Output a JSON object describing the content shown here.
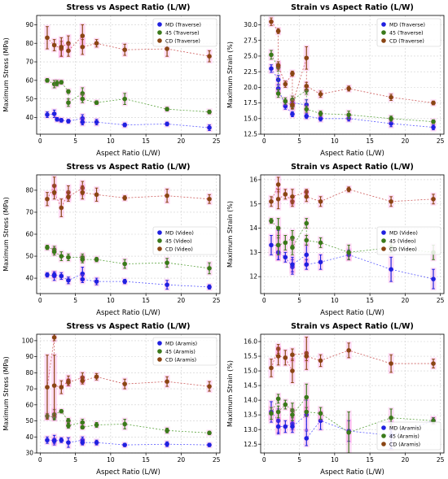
{
  "figure": {
    "panels": [
      {
        "title": "Stress vs Aspect Ratio (L/W)",
        "xlabel": "Aspect Ratio (L/W)",
        "ylabel": "Maximum Stress (MPa)",
        "legend_position": "upper right"
      },
      {
        "title": "Strain vs Aspect Ratio (L/W)",
        "xlabel": "Aspect Ratio (L/W)",
        "ylabel": "Maximum Strain (%)",
        "legend_position": "upper right"
      },
      {
        "title": "Stress vs Aspect Ratio (L/W)",
        "xlabel": "Aspect Ratio (L/W)",
        "ylabel": "Maximum Stress (MPa)",
        "legend_position": "center right"
      },
      {
        "title": "Strain vs Aspect Ratio (L/W)",
        "xlabel": "Aspect Ratio (L/W)",
        "ylabel": "Maximum Strain (%)",
        "legend_position": "center right"
      },
      {
        "title": "Stress vs Aspect Ratio (L/W)",
        "xlabel": "Aspect Ratio (L/W)",
        "ylabel": "Maximum Stress (MPa)",
        "legend_position": "upper right"
      },
      {
        "title": "Strain vs Aspect Ratio (L/W)",
        "xlabel": "Aspect Ratio (L/W)",
        "ylabel": "Maximum Strain (%)",
        "legend_position": "lower right"
      }
    ]
  },
  "colors": {
    "MD": "#2020e0",
    "45": "#3a7a1a",
    "CD": "#8a4513",
    "MD_line": "#4a4aff",
    "45_line": "#4a9a2a",
    "CD_line": "#c84a4a",
    "highlight": "#ff60d0",
    "grid": "#cfcfcf"
  },
  "chart_data": [
    {
      "type": "scatter",
      "title": "Stress vs Aspect Ratio (L/W)",
      "xlabel": "Aspect Ratio (L/W)",
      "ylabel": "Maximum Stress (MPa)",
      "xlim": [
        -0.5,
        25.5
      ],
      "ylim": [
        31,
        95
      ],
      "xticks": [
        0,
        5,
        10,
        15,
        20,
        25
      ],
      "yticks": [
        40,
        50,
        60,
        70,
        80,
        90
      ],
      "grid": true,
      "legend": "upper right",
      "series": [
        {
          "name": "MD (Traverse)",
          "key": "MD",
          "x": [
            1,
            2,
            2.4,
            3,
            4,
            6,
            6,
            8,
            12,
            18,
            24
          ],
          "y": [
            41.5,
            42,
            39,
            38.5,
            38,
            39.5,
            37.5,
            37.5,
            36,
            36.5,
            34.5
          ],
          "err": [
            1.5,
            2,
            1,
            1,
            1,
            2,
            1.5,
            1.5,
            1,
            1,
            1.5
          ]
        },
        {
          "name": "45 (Traverse)",
          "key": "45",
          "x": [
            1,
            2,
            2.4,
            3,
            4,
            4,
            6,
            6,
            8,
            12,
            18,
            24
          ],
          "y": [
            60,
            58,
            58.5,
            59,
            54,
            48,
            53,
            50,
            48,
            50,
            44.5,
            43
          ],
          "err": [
            1,
            2,
            1.5,
            1,
            1,
            2,
            3,
            2,
            1,
            3,
            1,
            1
          ]
        },
        {
          "name": "CD (Traverse)",
          "key": "CD",
          "x": [
            1,
            2,
            3,
            3,
            4,
            4,
            6,
            6,
            8,
            12,
            18,
            24
          ],
          "y": [
            83,
            79,
            77,
            78,
            80,
            76,
            84,
            78,
            80,
            76.5,
            77,
            73
          ],
          "err": [
            6,
            3,
            4,
            5,
            4,
            3,
            6,
            4,
            2,
            3,
            4,
            3
          ]
        }
      ]
    },
    {
      "type": "scatter",
      "title": "Strain vs Aspect Ratio (L/W)",
      "xlabel": "Aspect Ratio (L/W)",
      "ylabel": "Maximum Strain (%)",
      "xlim": [
        -0.5,
        25.5
      ],
      "ylim": [
        12.5,
        31.5
      ],
      "xticks": [
        0,
        5,
        10,
        15,
        20,
        25
      ],
      "yticks": [
        12.5,
        15.0,
        17.5,
        20.0,
        22.5,
        25.0,
        27.5,
        30.0
      ],
      "grid": true,
      "legend": "upper right",
      "series": [
        {
          "name": "MD (Traverse)",
          "key": "MD",
          "x": [
            1,
            2,
            2,
            3,
            4,
            4,
            6,
            6,
            8,
            12,
            18,
            24
          ],
          "y": [
            23,
            21.2,
            19.8,
            17,
            15.7,
            17.5,
            17.2,
            15.4,
            15,
            15,
            14.2,
            13.6
          ],
          "err": [
            0.6,
            0.7,
            0.5,
            0.5,
            0.4,
            0.6,
            0.8,
            0.4,
            0.4,
            0.4,
            0.5,
            0.4
          ]
        },
        {
          "name": "45 (Traverse)",
          "key": "45",
          "x": [
            1,
            2,
            2,
            3,
            4,
            4,
            6,
            6,
            8,
            12,
            18,
            24
          ],
          "y": [
            25.2,
            23.2,
            19,
            17.8,
            17,
            18,
            19.5,
            16.5,
            15.8,
            15.6,
            15,
            14.5
          ],
          "err": [
            0.7,
            0.6,
            0.6,
            0.5,
            0.5,
            0.6,
            0.6,
            0.5,
            0.4,
            0.6,
            0.4,
            0.3
          ]
        },
        {
          "name": "CD (Traverse)",
          "key": "CD",
          "x": [
            1,
            2,
            2,
            3,
            4,
            4,
            6,
            6,
            8,
            12,
            18,
            24
          ],
          "y": [
            30.5,
            29,
            23.5,
            20.5,
            22.2,
            17.2,
            24.7,
            20.2,
            18.9,
            19.8,
            18.4,
            17.5
          ],
          "err": [
            0.6,
            0.4,
            0.6,
            0.5,
            0.4,
            0.6,
            1.8,
            0.6,
            0.5,
            0.4,
            0.5,
            0.3
          ]
        }
      ]
    },
    {
      "type": "scatter",
      "title": "Stress vs Aspect Ratio (L/W)",
      "xlabel": "Aspect Ratio (L/W)",
      "ylabel": "Maximum Stress (MPa)",
      "xlim": [
        -0.5,
        25.5
      ],
      "ylim": [
        33,
        87
      ],
      "xticks": [
        0,
        5,
        10,
        15,
        20,
        25
      ],
      "yticks": [
        40,
        50,
        60,
        70,
        80
      ],
      "grid": true,
      "legend": "center right",
      "series": [
        {
          "name": "MD (Video)",
          "key": "MD",
          "x": [
            1,
            2,
            2,
            3,
            4,
            6,
            6,
            8,
            12,
            18,
            24
          ],
          "y": [
            41.5,
            41,
            41.5,
            41,
            39,
            42,
            39.5,
            38.5,
            38.5,
            37,
            36
          ],
          "err": [
            1,
            2,
            1,
            1.5,
            1.5,
            3,
            1.5,
            1.5,
            1,
            2,
            1
          ]
        },
        {
          "name": "45 (Video)",
          "key": "45",
          "x": [
            1,
            2,
            2,
            3,
            4,
            6,
            6,
            8,
            12,
            18,
            24
          ],
          "y": [
            54,
            53,
            52,
            50,
            49.5,
            49.5,
            48.5,
            48.5,
            46.5,
            47,
            44.5
          ],
          "err": [
            1,
            1.5,
            1.5,
            2,
            1.5,
            1.5,
            1.5,
            1,
            2,
            2,
            2.5
          ]
        },
        {
          "name": "CD (Video)",
          "key": "CD",
          "x": [
            1,
            2,
            2,
            3,
            4,
            4,
            6,
            6,
            8,
            12,
            18,
            24
          ],
          "y": [
            76,
            82,
            79,
            72,
            79,
            77,
            81,
            79,
            78,
            76.5,
            77.5,
            76
          ],
          "err": [
            3,
            4,
            3,
            4,
            3,
            2,
            3,
            3,
            3,
            1,
            3,
            2
          ]
        }
      ]
    },
    {
      "type": "scatter",
      "title": "Strain vs Aspect Ratio (L/W)",
      "xlabel": "Aspect Ratio (L/W)",
      "ylabel": "Maximum Strain (%)",
      "xlim": [
        -0.5,
        25.5
      ],
      "ylim": [
        11.3,
        16.2
      ],
      "xticks": [
        0,
        5,
        10,
        15,
        20,
        25
      ],
      "yticks": [
        12,
        13,
        14,
        15,
        16
      ],
      "grid": true,
      "legend": "center right",
      "series": [
        {
          "name": "MD (Video)",
          "key": "MD",
          "x": [
            1,
            2,
            2,
            3,
            4,
            4,
            6,
            6,
            8,
            12,
            18,
            24
          ],
          "y": [
            13.3,
            13.3,
            13,
            12.8,
            12.4,
            12.5,
            12.9,
            12.5,
            12.6,
            12.9,
            12.3,
            11.9
          ],
          "err": [
            0.4,
            0.6,
            0.3,
            0.2,
            0.3,
            0.3,
            0.4,
            0.2,
            0.3,
            0.2,
            0.5,
            0.4
          ]
        },
        {
          "name": "45 (Video)",
          "key": "45",
          "x": [
            1,
            2,
            2,
            3,
            4,
            4,
            6,
            6,
            8,
            12,
            18,
            24
          ],
          "y": [
            14.3,
            14,
            13.3,
            13.4,
            13.6,
            13.2,
            14.2,
            13.5,
            13.4,
            13,
            13.2,
            13
          ],
          "err": [
            0.1,
            0.4,
            0.4,
            0.3,
            0.3,
            0.3,
            0.2,
            0.2,
            0.2,
            0.3,
            0.2,
            0.3
          ]
        },
        {
          "name": "CD (Video)",
          "key": "CD",
          "x": [
            1,
            2,
            2,
            3,
            4,
            4,
            6,
            6,
            8,
            12,
            18,
            24
          ],
          "y": [
            15.1,
            15.8,
            15.2,
            15.4,
            15.1,
            15.3,
            15.5,
            15.3,
            15.1,
            15.6,
            15.1,
            15.2
          ],
          "err": [
            0.2,
            0.3,
            0.4,
            0.2,
            0.2,
            0.3,
            0.1,
            0.2,
            0.2,
            0.1,
            0.2,
            0.2
          ]
        }
      ]
    },
    {
      "type": "scatter",
      "title": "Stress vs Aspect Ratio (L/W)",
      "xlabel": "Aspect Ratio (L/W)",
      "ylabel": "Maximum Stress (MPa)",
      "xlim": [
        -0.5,
        25.5
      ],
      "ylim": [
        30,
        104
      ],
      "xticks": [
        0,
        5,
        10,
        15,
        20,
        25
      ],
      "yticks": [
        30,
        40,
        50,
        60,
        70,
        80,
        90,
        100
      ],
      "grid": true,
      "legend": "upper right",
      "series": [
        {
          "name": "MD (Aramis)",
          "key": "MD",
          "x": [
            1,
            2,
            2,
            3,
            4,
            6,
            6,
            8,
            12,
            18,
            24
          ],
          "y": [
            38,
            38,
            37.5,
            38,
            36.5,
            38,
            36.5,
            36.5,
            35,
            35.5,
            35
          ],
          "err": [
            2,
            3,
            1.5,
            1.5,
            3,
            2,
            1.5,
            1.5,
            1,
            1.5,
            1
          ]
        },
        {
          "name": "45 (Aramis)",
          "key": "45",
          "x": [
            1,
            2,
            2,
            3,
            4,
            4,
            6,
            6,
            8,
            12,
            18,
            24
          ],
          "y": [
            53,
            52.5,
            54,
            56,
            50,
            47,
            49,
            46,
            47.5,
            48,
            44,
            42.5
          ],
          "err": [
            1.5,
            2,
            3,
            1,
            1.5,
            1.5,
            2,
            1,
            1.5,
            3,
            1.5,
            1
          ]
        },
        {
          "name": "CD (Aramis)",
          "key": "CD",
          "x": [
            1,
            2,
            2,
            3,
            4,
            4,
            6,
            6,
            8,
            12,
            18,
            24
          ],
          "y": [
            71,
            102,
            72,
            71,
            75,
            74,
            77,
            75,
            77.5,
            73,
            74.5,
            71.5
          ],
          "err": [
            20,
            2,
            19,
            4,
            3,
            2,
            3,
            2,
            2,
            3,
            3,
            3
          ]
        }
      ]
    },
    {
      "type": "scatter",
      "title": "Strain vs Aspect Ratio (L/W)",
      "xlabel": "Aspect Ratio (L/W)",
      "ylabel": "Maximum Strain (%)",
      "xlim": [
        -0.5,
        25.5
      ],
      "ylim": [
        12.2,
        16.25
      ],
      "xticks": [
        0,
        5,
        10,
        15,
        20,
        25
      ],
      "yticks": [
        12.5,
        13.0,
        13.5,
        14.0,
        14.5,
        15.0,
        15.5,
        16.0
      ],
      "grid": true,
      "legend": "lower right",
      "series": [
        {
          "name": "MD (Aramis)",
          "key": "MD",
          "x": [
            1,
            2,
            2,
            3,
            4,
            4,
            6,
            6,
            8,
            12,
            18,
            24
          ],
          "y": [
            13.6,
            13.3,
            13.1,
            13.1,
            13.2,
            13.1,
            13.5,
            12.7,
            13.3,
            12.95,
            12.8,
            13.3
          ],
          "err": [
            0.35,
            0.4,
            0.25,
            0.2,
            0.2,
            0.2,
            0.5,
            0.25,
            0.3,
            0.35,
            0.45,
            0.1
          ]
        },
        {
          "name": "45 (Aramis)",
          "key": "45",
          "x": [
            1,
            2,
            2,
            3,
            4,
            4,
            6,
            6,
            8,
            12,
            18,
            24
          ],
          "y": [
            13.55,
            14.05,
            13.6,
            13.85,
            13.65,
            13.5,
            14.1,
            13.6,
            13.55,
            12.9,
            13.4,
            13.3
          ],
          "err": [
            0.2,
            0.15,
            0.2,
            0.15,
            0.25,
            0.2,
            0.45,
            0.15,
            0.2,
            0.7,
            0.3,
            0.1
          ]
        },
        {
          "name": "CD (Aramis)",
          "key": "CD",
          "x": [
            1,
            2,
            2,
            3,
            4,
            4,
            6,
            6,
            8,
            12,
            18,
            24
          ],
          "y": [
            15.1,
            15.75,
            15.5,
            15.45,
            15.0,
            15.55,
            15.6,
            15.5,
            15.35,
            15.7,
            15.25,
            15.25
          ],
          "err": [
            0.3,
            0.15,
            0.3,
            0.25,
            0.4,
            0.2,
            0.55,
            0.15,
            0.2,
            0.25,
            0.3,
            0.15
          ]
        }
      ]
    }
  ]
}
